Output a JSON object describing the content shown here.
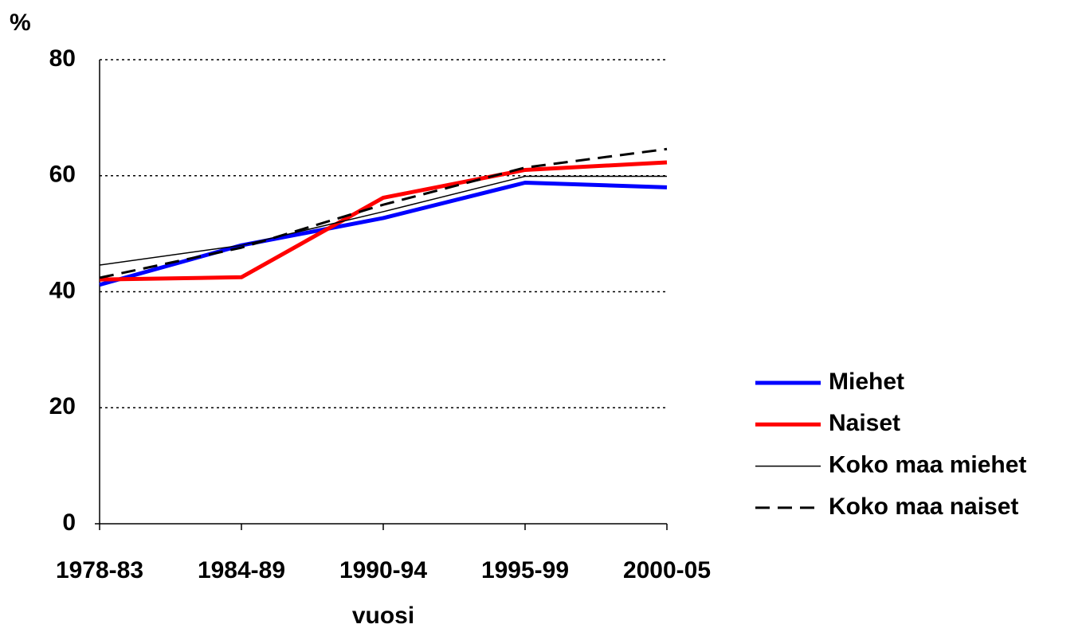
{
  "chart_data": {
    "type": "line",
    "y_label": "%",
    "x_label": "vuosi",
    "categories": [
      "1978-83",
      "1984-89",
      "1990-94",
      "1995-99",
      "2000-05"
    ],
    "series": [
      {
        "name": "Miehet",
        "color": "#0000ff",
        "width": 5,
        "dashed": false,
        "values": [
          41.2,
          48.0,
          52.7,
          58.8,
          58.0
        ]
      },
      {
        "name": "Naiset",
        "color": "#ff0000",
        "width": 5,
        "dashed": false,
        "values": [
          42.1,
          42.5,
          56.2,
          61.0,
          62.3
        ]
      },
      {
        "name": "Koko maa miehet",
        "color": "#000000",
        "width": 1.5,
        "dashed": false,
        "values": [
          44.6,
          48.0,
          53.8,
          59.9,
          59.9
        ]
      },
      {
        "name": "Koko maa naiset",
        "color": "#000000",
        "width": 3,
        "dashed": true,
        "values": [
          42.4,
          47.6,
          55.0,
          61.4,
          64.6
        ]
      }
    ],
    "ylim": [
      0,
      80
    ],
    "yticks": [
      0,
      20,
      40,
      60,
      80
    ],
    "grid": true,
    "legend": "right"
  }
}
